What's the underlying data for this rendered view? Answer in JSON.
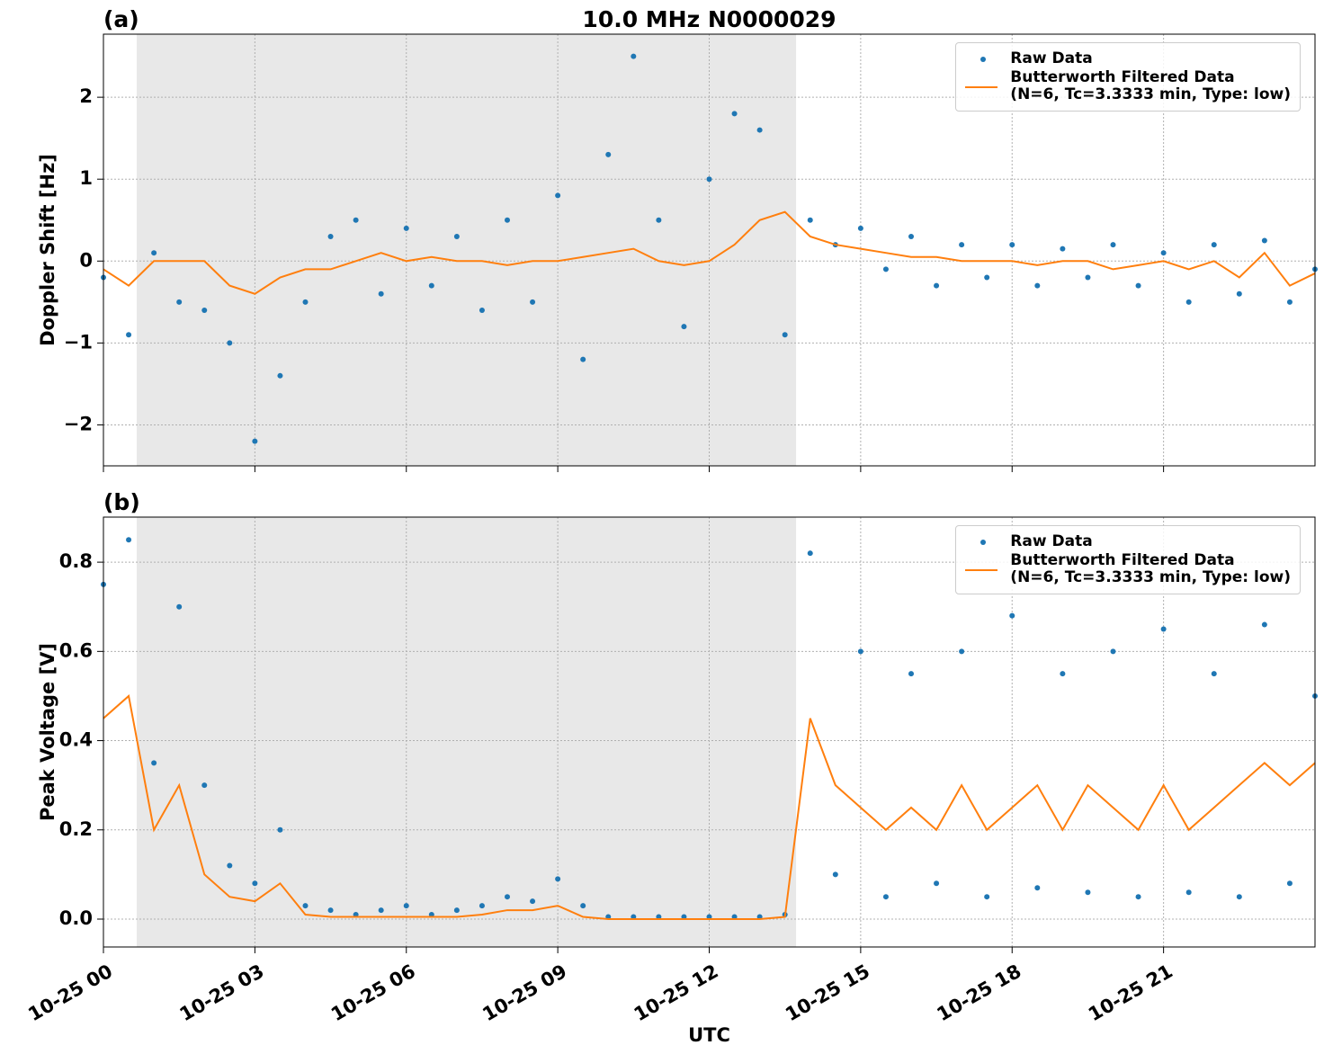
{
  "chart_data": [
    {
      "type": "line",
      "title": "10.0 MHz N0000029",
      "panel_label": "(a)",
      "ylabel": "Doppler Shift [Hz]",
      "x": [
        0,
        0.5,
        1,
        1.5,
        2,
        2.5,
        3,
        3.5,
        4,
        4.5,
        5,
        5.5,
        6,
        6.5,
        7,
        7.5,
        8,
        8.5,
        9,
        9.5,
        10,
        10.5,
        11,
        11.5,
        12,
        12.5,
        13,
        13.5,
        14,
        14.5,
        15,
        15.5,
        16,
        16.5,
        17,
        17.5,
        18,
        18.5,
        19,
        19.5,
        20,
        20.5,
        21,
        21.5,
        22,
        22.5,
        23,
        23.5,
        24
      ],
      "series": [
        {
          "name": "Raw Data",
          "color": "#1f77b4",
          "marker": true,
          "values": [
            -0.2,
            -0.9,
            0.1,
            -0.5,
            -0.6,
            -1.0,
            -2.2,
            -1.4,
            -0.5,
            0.3,
            0.5,
            -0.4,
            0.4,
            -0.3,
            0.3,
            -0.6,
            0.5,
            -0.5,
            0.8,
            -1.2,
            1.3,
            2.5,
            0.5,
            -0.8,
            1.0,
            1.8,
            1.6,
            -0.9,
            0.5,
            0.2,
            0.4,
            -0.1,
            0.3,
            -0.3,
            0.2,
            -0.2,
            0.2,
            -0.3,
            0.15,
            -0.2,
            0.2,
            -0.3,
            0.1,
            -0.5,
            0.2,
            -0.4,
            0.25,
            -0.5,
            -0.1
          ]
        },
        {
          "name": "Butterworth Filtered Data\n(N=6, Tc=3.3333 min, Type: low)",
          "color": "#ff7f0e",
          "marker": false,
          "values": [
            -0.1,
            -0.3,
            0.0,
            0.0,
            0.0,
            -0.3,
            -0.4,
            -0.2,
            -0.1,
            -0.1,
            0.0,
            0.1,
            0.0,
            0.05,
            0.0,
            0.0,
            -0.05,
            0.0,
            0.0,
            0.05,
            0.1,
            0.15,
            0.0,
            -0.05,
            0.0,
            0.2,
            0.5,
            0.6,
            0.3,
            0.2,
            0.15,
            0.1,
            0.05,
            0.05,
            0.0,
            0.0,
            0.0,
            -0.05,
            0.0,
            0.0,
            -0.1,
            -0.05,
            0.0,
            -0.1,
            0.0,
            -0.2,
            0.1,
            -0.3,
            -0.15
          ]
        }
      ],
      "shade": [
        0.66,
        13.72
      ],
      "xlim": [
        0,
        24
      ],
      "xticks": [
        0,
        3,
        6,
        9,
        12,
        15,
        18,
        21
      ],
      "xtick_labels": false,
      "ylim": [
        -2.5,
        2.77
      ],
      "yticks": [
        {
          "value": -2,
          "label": "−2"
        },
        {
          "value": -1,
          "label": "−1"
        },
        0,
        1,
        2
      ],
      "grid": true,
      "legend": "upper right"
    },
    {
      "type": "line",
      "panel_label": "(b)",
      "ylabel": "Peak Voltage [V]",
      "xlabel": "UTC",
      "x": [
        0,
        0.5,
        1,
        1.5,
        2,
        2.5,
        3,
        3.5,
        4,
        4.5,
        5,
        5.5,
        6,
        6.5,
        7,
        7.5,
        8,
        8.5,
        9,
        9.5,
        10,
        10.5,
        11,
        11.5,
        12,
        12.5,
        13,
        13.5,
        14,
        14.5,
        15,
        15.5,
        16,
        16.5,
        17,
        17.5,
        18,
        18.5,
        19,
        19.5,
        20,
        20.5,
        21,
        21.5,
        22,
        22.5,
        23,
        23.5,
        24
      ],
      "series": [
        {
          "name": "Raw Data",
          "color": "#1f77b4",
          "marker": true,
          "values": [
            0.75,
            0.85,
            0.35,
            0.7,
            0.3,
            0.12,
            0.08,
            0.2,
            0.03,
            0.02,
            0.01,
            0.02,
            0.03,
            0.01,
            0.02,
            0.03,
            0.05,
            0.04,
            0.09,
            0.03,
            0.005,
            0.005,
            0.005,
            0.005,
            0.005,
            0.005,
            0.005,
            0.01,
            0.82,
            0.1,
            0.6,
            0.05,
            0.55,
            0.08,
            0.6,
            0.05,
            0.68,
            0.07,
            0.55,
            0.06,
            0.6,
            0.05,
            0.65,
            0.06,
            0.55,
            0.05,
            0.66,
            0.08,
            0.5
          ]
        },
        {
          "name": "Butterworth Filtered Data\n(N=6, Tc=3.3333 min, Type: low)",
          "color": "#ff7f0e",
          "marker": false,
          "values": [
            0.45,
            0.5,
            0.2,
            0.3,
            0.1,
            0.05,
            0.04,
            0.08,
            0.01,
            0.005,
            0.005,
            0.005,
            0.005,
            0.005,
            0.005,
            0.01,
            0.02,
            0.02,
            0.03,
            0.005,
            0.0,
            0.0,
            0.0,
            0.0,
            0.0,
            0.0,
            0.0,
            0.005,
            0.45,
            0.3,
            0.25,
            0.2,
            0.25,
            0.2,
            0.3,
            0.2,
            0.25,
            0.3,
            0.2,
            0.3,
            0.25,
            0.2,
            0.3,
            0.2,
            0.25,
            0.3,
            0.35,
            0.3,
            0.35
          ]
        }
      ],
      "shade": [
        0.66,
        13.72
      ],
      "xlim": [
        0,
        24
      ],
      "xticks": [
        {
          "value": 0,
          "label": "10-25 00"
        },
        {
          "value": 3,
          "label": "10-25 03"
        },
        {
          "value": 6,
          "label": "10-25 06"
        },
        {
          "value": 9,
          "label": "10-25 09"
        },
        {
          "value": 12,
          "label": "10-25 12"
        },
        {
          "value": 15,
          "label": "10-25 15"
        },
        {
          "value": 18,
          "label": "10-25 18"
        },
        {
          "value": 21,
          "label": "10-25 21"
        }
      ],
      "xtick_labels": true,
      "ylim": [
        -0.0625,
        0.901
      ],
      "yticks": [
        {
          "value": 0,
          "label": "0.0"
        },
        0.2,
        0.4,
        0.6,
        0.8
      ],
      "grid": true,
      "legend": "upper right"
    }
  ]
}
